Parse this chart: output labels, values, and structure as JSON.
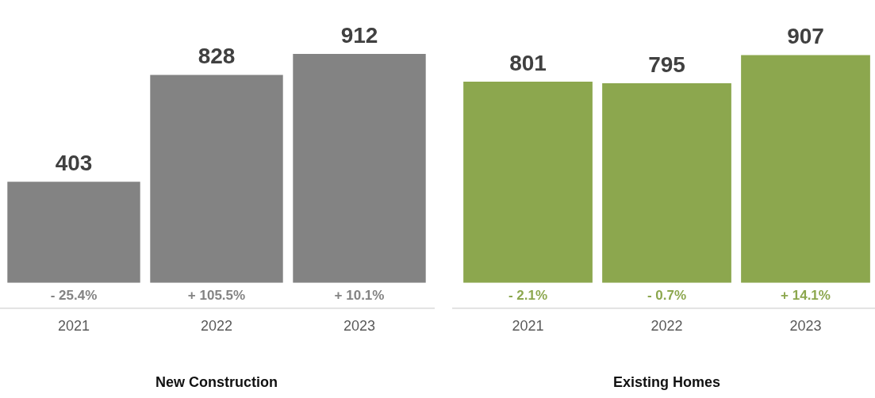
{
  "chart_data": [
    {
      "type": "bar",
      "xlabel": "New Construction",
      "categories": [
        "2021",
        "2022",
        "2023"
      ],
      "values": [
        403,
        828,
        912
      ],
      "color": "#838383",
      "data_labels": true,
      "annotations": [
        "- 25.4%",
        "+ 105.5%",
        "+ 10.1%"
      ],
      "grid": false,
      "legend": false,
      "tick_labels": "x"
    },
    {
      "type": "bar",
      "xlabel": "Existing Homes",
      "categories": [
        "2021",
        "2022",
        "2023"
      ],
      "values": [
        801,
        795,
        907
      ],
      "color": "#8ca74e",
      "data_labels": true,
      "annotations": [
        "- 2.1%",
        "- 0.7%",
        "+ 14.1%"
      ],
      "grid": false,
      "legend": false,
      "tick_labels": "x"
    }
  ]
}
